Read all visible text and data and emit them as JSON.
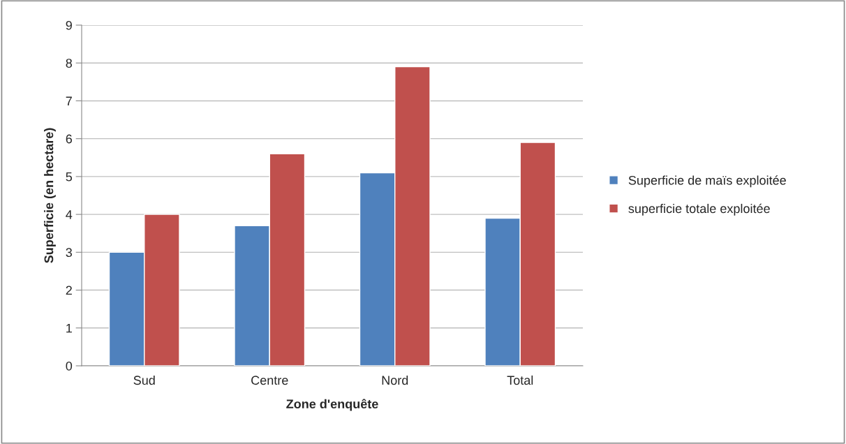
{
  "chart_data": {
    "type": "bar",
    "xlabel": "Zone d'enquête",
    "ylabel": "Superficie (en hectare)",
    "categories": [
      "Sud",
      "Centre",
      "Nord",
      "Total"
    ],
    "series": [
      {
        "name": "Superficie de maïs exploitée",
        "color": "#4f81bd",
        "values": [
          3.0,
          3.7,
          5.1,
          3.9
        ]
      },
      {
        "name": "superficie totale exploitée",
        "color": "#c0504d",
        "values": [
          4.0,
          5.6,
          7.9,
          5.9
        ]
      }
    ],
    "ylim": [
      0,
      9
    ],
    "yticks": [
      0,
      1,
      2,
      3,
      4,
      5,
      6,
      7,
      8,
      9
    ],
    "grid": "y",
    "legend": "right"
  }
}
